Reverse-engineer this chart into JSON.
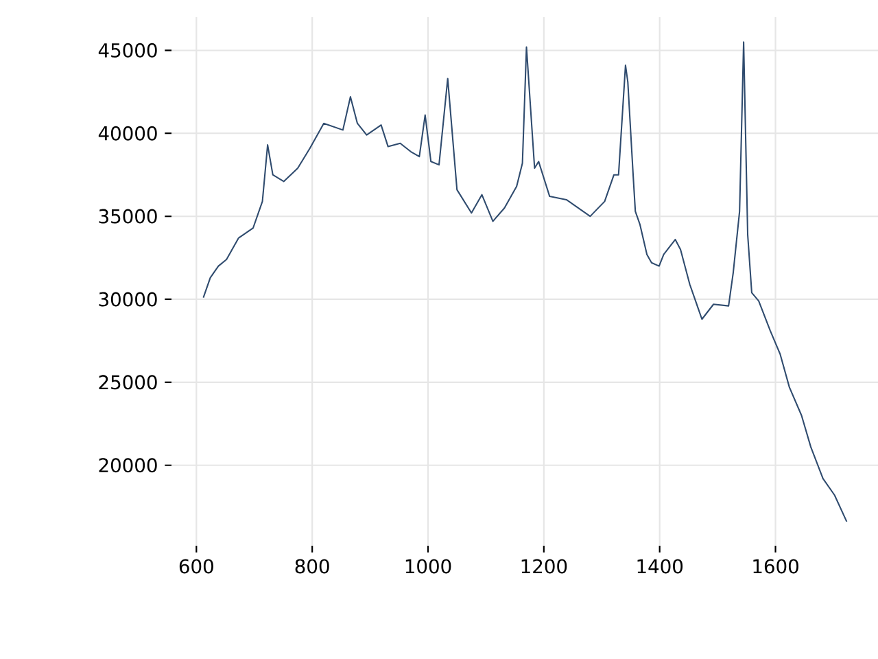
{
  "chart_data": {
    "type": "line",
    "x": [
      612,
      624,
      638,
      652,
      673,
      698,
      714,
      723,
      732,
      751,
      775,
      796,
      820,
      853,
      866,
      878,
      894,
      919,
      931,
      952,
      970,
      985,
      995,
      1005,
      1019,
      1034,
      1050,
      1075,
      1093,
      1112,
      1132,
      1153,
      1163,
      1170,
      1184,
      1191,
      1210,
      1239,
      1280,
      1305,
      1321,
      1329,
      1341,
      1345,
      1354,
      1358,
      1366,
      1378,
      1386,
      1399,
      1407,
      1427,
      1436,
      1452,
      1473,
      1493,
      1519,
      1527,
      1538,
      1545,
      1552,
      1559,
      1571,
      1591,
      1608,
      1624,
      1645,
      1661,
      1682,
      1702,
      1723
    ],
    "values": [
      30100,
      31300,
      32000,
      32400,
      33700,
      34300,
      35900,
      39300,
      37500,
      37100,
      37900,
      39100,
      40600,
      40200,
      42200,
      40600,
      39900,
      40500,
      39200,
      39400,
      38900,
      38600,
      41100,
      38300,
      38100,
      43300,
      36600,
      35200,
      36300,
      34700,
      35500,
      36800,
      38200,
      45200,
      37900,
      38300,
      36200,
      36000,
      35000,
      35900,
      37500,
      37500,
      44100,
      43100,
      37600,
      35300,
      34500,
      32700,
      32200,
      32000,
      32700,
      33600,
      33000,
      30900,
      28800,
      29700,
      29600,
      31600,
      35300,
      45500,
      33900,
      30400,
      29900,
      28100,
      26700,
      24700,
      23000,
      21100,
      19200,
      18200,
      16600
    ],
    "color": "#2f4b6e",
    "xlim": [
      557,
      1781
    ],
    "ylim": [
      15150,
      47000
    ],
    "xticks": [
      600,
      800,
      1000,
      1200,
      1400,
      1600
    ],
    "yticks": [
      20000,
      25000,
      30000,
      35000,
      40000,
      45000
    ],
    "grid": true
  }
}
